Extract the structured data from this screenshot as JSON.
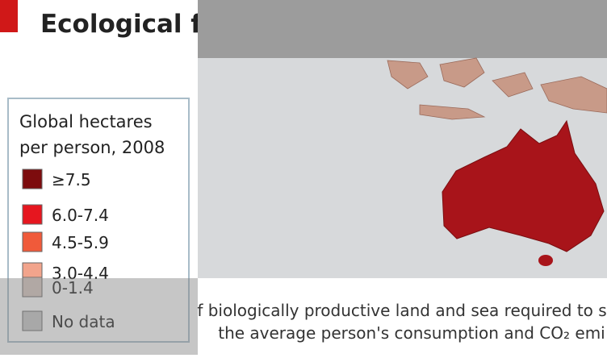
{
  "header": {
    "title": "Ecological f"
  },
  "legend": {
    "title_lines": [
      "Global hectares",
      "per person, 2008"
    ],
    "items": [
      {
        "label": "≥7.5",
        "color": "#7d0c0e"
      },
      {
        "label": "6.0-7.4",
        "color": "#e6161f"
      },
      {
        "label": "4.5-5.9",
        "color": "#f05a3a"
      },
      {
        "label": "3.0-4.4",
        "color": "#f2a48c"
      },
      {
        "label": "0-1.4",
        "color": "#d9c9c2"
      },
      {
        "label": "No data",
        "color": "#c8c8c8"
      }
    ]
  },
  "caption": {
    "lines": [
      "f biologically productive land and sea required to s",
      "the average person's consumption and CO₂ emi"
    ]
  }
}
